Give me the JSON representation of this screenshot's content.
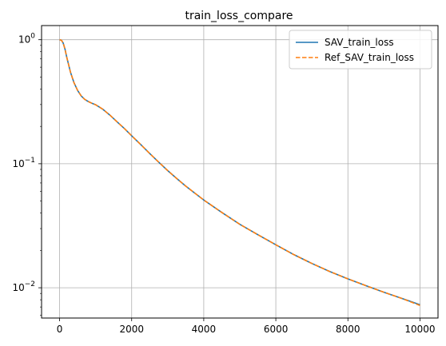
{
  "chart_data": {
    "type": "line",
    "title": "train_loss_compare",
    "xlabel": "",
    "ylabel": "",
    "xlim": [
      -500,
      10500
    ],
    "ylim": [
      0.0057,
      1.3
    ],
    "yscale": "log",
    "grid": true,
    "legend_position": "top-right",
    "x_ticks": [
      0,
      2000,
      4000,
      6000,
      8000,
      10000
    ],
    "x_tick_labels": [
      "0",
      "2000",
      "4000",
      "6000",
      "8000",
      "10000"
    ],
    "y_major_ticks": [
      0.01,
      0.1,
      1
    ],
    "y_tick_labels": [
      {
        "base": "10",
        "exp": "−2"
      },
      {
        "base": "10",
        "exp": "−1"
      },
      {
        "base": "10",
        "exp": "0"
      }
    ],
    "x": [
      0,
      50,
      100,
      150,
      200,
      250,
      300,
      400,
      500,
      600,
      700,
      800,
      900,
      1000,
      1200,
      1400,
      1600,
      1800,
      2000,
      2250,
      2500,
      2750,
      3000,
      3250,
      3500,
      3750,
      4000,
      4500,
      5000,
      5500,
      6000,
      6500,
      7000,
      7500,
      8000,
      8500,
      9000,
      9500,
      10000
    ],
    "series": [
      {
        "name": "SAV_train_loss",
        "color": "#1f77b4",
        "style": "solid",
        "values": [
          1.0,
          0.99,
          0.94,
          0.84,
          0.72,
          0.63,
          0.55,
          0.45,
          0.39,
          0.352,
          0.33,
          0.317,
          0.307,
          0.299,
          0.275,
          0.246,
          0.217,
          0.192,
          0.168,
          0.143,
          0.121,
          0.103,
          0.088,
          0.076,
          0.066,
          0.058,
          0.051,
          0.0405,
          0.0325,
          0.0268,
          0.0222,
          0.0185,
          0.0157,
          0.0135,
          0.0118,
          0.0104,
          0.0092,
          0.0082,
          0.0073
        ]
      },
      {
        "name": "Ref_SAV_train_loss",
        "color": "#ff7f0e",
        "style": "dashed",
        "values": [
          1.0,
          0.99,
          0.94,
          0.84,
          0.72,
          0.63,
          0.55,
          0.45,
          0.39,
          0.352,
          0.33,
          0.317,
          0.307,
          0.299,
          0.275,
          0.246,
          0.217,
          0.192,
          0.168,
          0.143,
          0.121,
          0.103,
          0.088,
          0.076,
          0.066,
          0.058,
          0.051,
          0.0405,
          0.0325,
          0.0268,
          0.0222,
          0.0185,
          0.0157,
          0.0135,
          0.0118,
          0.0104,
          0.0092,
          0.0082,
          0.0072
        ]
      }
    ]
  }
}
